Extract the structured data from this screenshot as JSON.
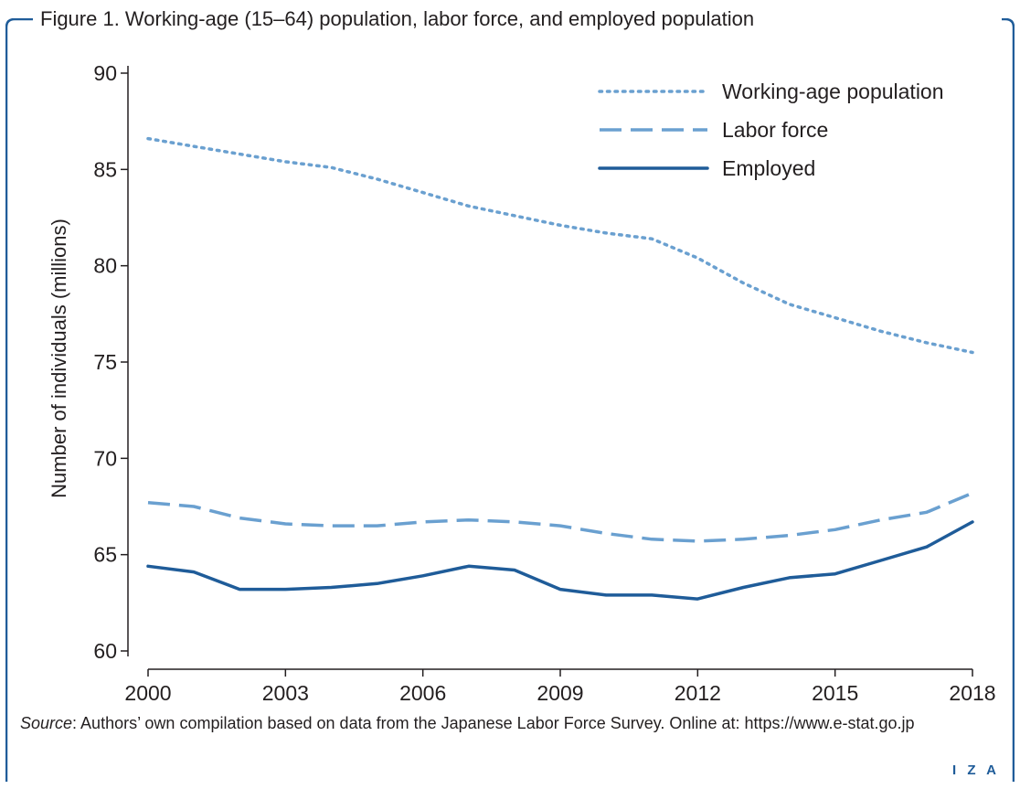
{
  "figure": {
    "title": "Figure 1. Working-age (15–64) population, labor force, and employed population",
    "source_label": "Source",
    "source_text": ": Authors’ own compilation based on data from the Japanese Labor Force Survey. Online at: https://www.e-stat.go.jp",
    "logo_text": "I Z A"
  },
  "colors": {
    "frame": "#1f5c99",
    "working_age": "#6aa0d0",
    "labor_force": "#6aa0d0",
    "employed": "#1f5c99"
  },
  "chart_data": {
    "type": "line",
    "title": "",
    "xlabel": "",
    "ylabel": "Number of individuals (millions)",
    "xlim": [
      2000,
      2018
    ],
    "ylim": [
      60,
      90
    ],
    "xticks": [
      2000,
      2003,
      2006,
      2009,
      2012,
      2015,
      2018
    ],
    "yticks": [
      60,
      65,
      70,
      75,
      80,
      85,
      90
    ],
    "grid": false,
    "legend_position": "top-right",
    "x": [
      2000,
      2001,
      2002,
      2003,
      2004,
      2005,
      2006,
      2007,
      2008,
      2009,
      2010,
      2011,
      2012,
      2013,
      2014,
      2015,
      2016,
      2017,
      2018
    ],
    "series": [
      {
        "name": "Working-age population",
        "style": "dotted",
        "values": [
          86.6,
          86.2,
          85.8,
          85.4,
          85.1,
          84.5,
          83.8,
          83.1,
          82.6,
          82.1,
          81.7,
          81.4,
          80.4,
          79.1,
          78.0,
          77.3,
          76.6,
          76.0,
          75.5
        ]
      },
      {
        "name": "Labor force",
        "style": "dashed",
        "values": [
          67.7,
          67.5,
          66.9,
          66.6,
          66.5,
          66.5,
          66.7,
          66.8,
          66.7,
          66.5,
          66.1,
          65.8,
          65.7,
          65.8,
          66.0,
          66.3,
          66.8,
          67.2,
          68.2
        ]
      },
      {
        "name": "Employed",
        "style": "solid",
        "values": [
          64.4,
          64.1,
          63.2,
          63.2,
          63.3,
          63.5,
          63.9,
          64.4,
          64.2,
          63.2,
          62.9,
          62.9,
          62.7,
          63.3,
          63.8,
          64.0,
          64.7,
          65.4,
          66.7
        ]
      }
    ]
  }
}
